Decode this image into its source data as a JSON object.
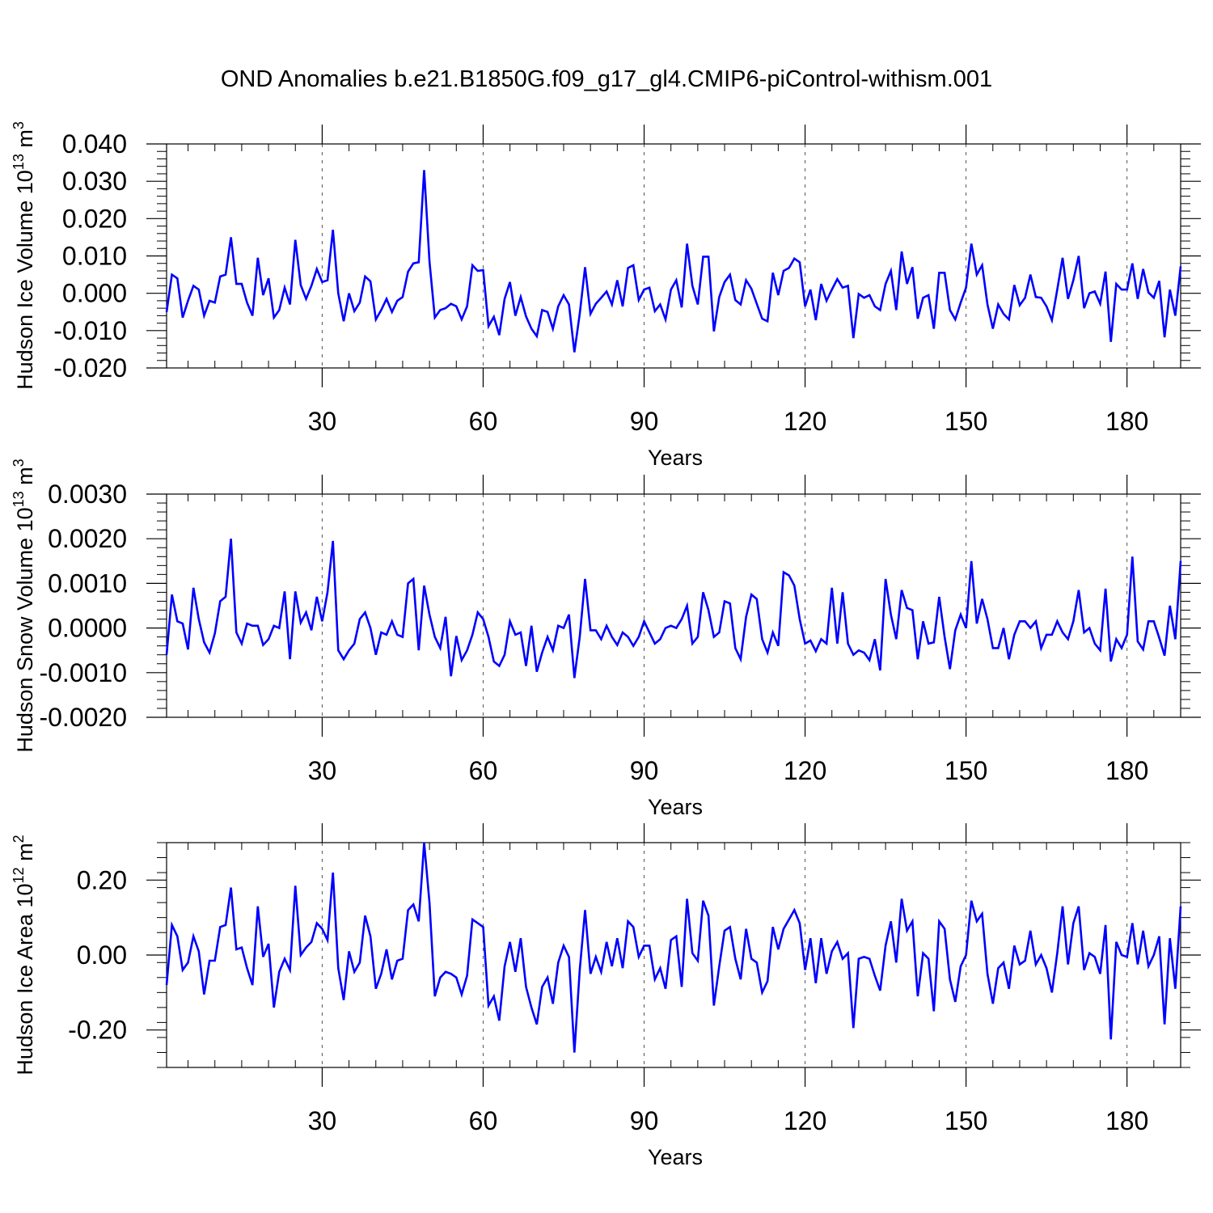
{
  "title": "OND Anomalies b.e21.B1850G.f09_g17_gl4.CMIP6-piControl-withism.001",
  "line_color": "#0000ff",
  "chart_data": [
    {
      "type": "line",
      "ylabel": "Hudson Ice Volume 10",
      "ylabel_exp": "13",
      "ylabel_unit": " m",
      "ylabel_unit_exp": "3",
      "xlabel": "Years",
      "xlim": [
        1,
        190
      ],
      "ylim": [
        -0.02,
        0.04
      ],
      "xticks": [
        30,
        60,
        90,
        120,
        150,
        180
      ],
      "xtick_labels": [
        "30",
        "60",
        "90",
        "120",
        "150",
        "180"
      ],
      "yticks": [
        -0.02,
        -0.01,
        0.0,
        0.01,
        0.02,
        0.03,
        0.04
      ],
      "ytick_labels": [
        "-0.020",
        "-0.010",
        "0.000",
        "0.010",
        "0.020",
        "0.030",
        "0.040"
      ],
      "series": [
        {
          "name": "Hudson Ice Volume",
          "values": [
            -0.005,
            0.005,
            0.004,
            -0.0065,
            -0.002,
            0.002,
            0.001,
            -0.006,
            -0.002,
            -0.0025,
            0.0045,
            0.005,
            0.015,
            0.0025,
            0.0025,
            -0.0025,
            -0.006,
            0.0095,
            -0.0005,
            0.004,
            -0.0065,
            -0.0045,
            0.0015,
            -0.003,
            0.0143,
            0.0022,
            -0.0015,
            0.002,
            0.0065,
            0.003,
            0.0035,
            0.017,
            0.0,
            -0.0075,
            0.0,
            -0.0048,
            -0.0025,
            0.0045,
            0.0032,
            -0.007,
            -0.0045,
            -0.0015,
            -0.005,
            -0.002,
            -0.001,
            0.0058,
            0.008,
            0.0083,
            0.033,
            0.0085,
            -0.0065,
            -0.0045,
            -0.004,
            -0.0028,
            -0.0035,
            -0.007,
            -0.0035,
            0.0075,
            0.006,
            0.0062,
            -0.0088,
            -0.0063,
            -0.0112,
            -0.0015,
            0.003,
            -0.006,
            -0.001,
            -0.0062,
            -0.0095,
            -0.0115,
            -0.0045,
            -0.005,
            -0.0095,
            -0.0035,
            -0.0005,
            -0.003,
            -0.0158,
            -0.0055,
            0.007,
            -0.0055,
            -0.0028,
            -0.0012,
            0.0005,
            -0.003,
            0.0035,
            -0.0035,
            0.0068,
            0.0075,
            -0.0018,
            0.001,
            0.0015,
            -0.0048,
            -0.003,
            -0.007,
            0.001,
            0.0035,
            -0.0038,
            0.0133,
            0.002,
            -0.003,
            0.0098,
            0.0098,
            -0.0102,
            -0.001,
            0.003,
            0.005,
            -0.0018,
            -0.003,
            0.0035,
            0.0012,
            -0.0028,
            -0.0068,
            -0.0075,
            0.0055,
            -0.0005,
            0.006,
            0.0068,
            0.0093,
            0.0083,
            -0.0035,
            0.001,
            -0.0072,
            0.0025,
            -0.002,
            0.001,
            0.0038,
            0.0015,
            0.002,
            -0.012,
            -0.0002,
            -0.0012,
            -0.0005,
            -0.0035,
            -0.0045,
            0.0025,
            0.006,
            -0.0045,
            0.0112,
            0.0025,
            0.007,
            -0.0068,
            -0.0012,
            -0.0005,
            -0.0095,
            0.0055,
            0.0055,
            -0.0045,
            -0.007,
            -0.0025,
            0.0015,
            0.0133,
            0.005,
            0.0075,
            -0.003,
            -0.0095,
            -0.003,
            -0.0055,
            -0.007,
            0.0022,
            -0.0032,
            -0.0012,
            0.005,
            -0.001,
            -0.0012,
            -0.0035,
            -0.0072,
            0.001,
            0.0095,
            -0.0015,
            0.0035,
            0.01,
            -0.004,
            0.0,
            0.0005,
            -0.0028,
            0.0058,
            -0.013,
            0.0025,
            0.001,
            0.001,
            0.008,
            -0.0015,
            0.0065,
            0.0002,
            -0.0012,
            0.0033,
            -0.0118,
            0.001,
            -0.006,
            0.0072
          ]
        }
      ]
    },
    {
      "type": "line",
      "ylabel": "Hudson Snow Volume 10",
      "ylabel_exp": "13",
      "ylabel_unit": " m",
      "ylabel_unit_exp": "3",
      "xlabel": "Years",
      "xlim": [
        1,
        190
      ],
      "ylim": [
        -0.002,
        0.003
      ],
      "xticks": [
        30,
        60,
        90,
        120,
        150,
        180
      ],
      "xtick_labels": [
        "30",
        "60",
        "90",
        "120",
        "150",
        "180"
      ],
      "yticks": [
        -0.002,
        -0.001,
        0.0,
        0.001,
        0.002,
        0.003
      ],
      "ytick_labels": [
        "-0.0020",
        "-0.0010",
        "0.0000",
        "0.0010",
        "0.0020",
        "0.0030"
      ],
      "series": [
        {
          "name": "Hudson Snow Volume",
          "values": [
            -0.0006,
            0.00075,
            0.00015,
            0.0001,
            -0.00048,
            0.0009,
            0.0002,
            -0.00032,
            -0.00055,
            -0.00012,
            0.0006,
            0.0007,
            0.002,
            -0.0001,
            -0.00035,
            0.0001,
            5e-05,
            5e-05,
            -0.00038,
            -0.00025,
            5e-05,
            0.0,
            0.00082,
            -0.0007,
            0.00082,
            0.00012,
            0.00035,
            -5e-05,
            0.0007,
            0.00015,
            0.0008,
            0.00195,
            -0.0005,
            -0.0007,
            -0.0005,
            -0.00035,
            0.0002,
            0.00035,
            0.0,
            -0.0006,
            -0.0001,
            -0.00015,
            0.00015,
            -0.00015,
            -0.0002,
            0.001,
            0.0011,
            -0.0005,
            0.00095,
            0.0003,
            -0.0002,
            -0.00045,
            0.00025,
            -0.00108,
            -0.00018,
            -0.00072,
            -0.0005,
            -0.00015,
            0.00035,
            0.0002,
            -0.0002,
            -0.00075,
            -0.00085,
            -0.0006,
            0.00015,
            -0.00015,
            -0.0001,
            -0.00085,
            5e-05,
            -0.00098,
            -0.00055,
            -0.0002,
            -0.0005,
            5e-05,
            0.0,
            0.0003,
            -0.00112,
            -0.0002,
            0.0011,
            -5e-05,
            -5e-05,
            -0.00025,
            5e-05,
            -0.0002,
            -0.00038,
            -0.0001,
            -0.0002,
            -0.0004,
            -0.0002,
            0.00015,
            -0.0001,
            -0.00035,
            -0.00025,
            0.0,
            5e-05,
            0.0,
            0.0002,
            0.0005,
            -0.00035,
            -0.0002,
            0.0008,
            0.0004,
            -0.0002,
            -0.0001,
            0.0006,
            0.00055,
            -0.00045,
            -0.0007,
            0.00025,
            0.00075,
            0.00065,
            -0.00025,
            -0.00055,
            -0.0001,
            -0.0004,
            0.00125,
            0.00118,
            0.00095,
            0.0002,
            -0.00035,
            -0.00028,
            -0.00052,
            -0.00025,
            -0.00035,
            0.0009,
            -0.00035,
            0.0008,
            -0.00035,
            -0.0006,
            -0.0005,
            -0.00055,
            -0.00072,
            -0.00025,
            -0.00095,
            0.0011,
            0.0003,
            -0.00025,
            0.00085,
            0.00045,
            0.0004,
            -0.0007,
            0.00015,
            -0.00035,
            -0.00032,
            0.0007,
            -0.0002,
            -0.00092,
            -5e-05,
            0.0003,
            0.0,
            0.0015,
            0.0001,
            0.00065,
            0.0002,
            -0.00045,
            -0.00045,
            0.0,
            -0.0007,
            -0.00015,
            0.00015,
            0.00015,
            0.0,
            0.00015,
            -0.00045,
            -0.00015,
            -0.00015,
            0.00015,
            -0.0001,
            -0.00025,
            0.00015,
            0.00085,
            -0.0001,
            0.0,
            -0.00035,
            -0.0005,
            0.00088,
            -0.00075,
            -0.00025,
            -0.00045,
            -0.00015,
            0.0016,
            -0.0003,
            -0.00048,
            0.00015,
            0.00015,
            -0.00022,
            -0.00062,
            0.0005,
            -0.00025,
            0.0015
          ]
        }
      ]
    },
    {
      "type": "line",
      "ylabel": "Hudson Ice Area 10",
      "ylabel_exp": "12",
      "ylabel_unit": " m",
      "ylabel_unit_exp": "2",
      "xlabel": "Years",
      "xlim": [
        1,
        190
      ],
      "ylim": [
        -0.3,
        0.3
      ],
      "xticks": [
        30,
        60,
        90,
        120,
        150,
        180
      ],
      "xtick_labels": [
        "30",
        "60",
        "90",
        "120",
        "150",
        "180"
      ],
      "yticks": [
        -0.2,
        0.0,
        0.2
      ],
      "ytick_labels": [
        "-0.20",
        "0.00",
        "0.20"
      ],
      "series": [
        {
          "name": "Hudson Ice Area",
          "values": [
            -0.08,
            0.08,
            0.05,
            -0.04,
            -0.02,
            0.05,
            0.01,
            -0.105,
            -0.015,
            -0.015,
            0.075,
            0.08,
            0.18,
            0.015,
            0.02,
            -0.035,
            -0.08,
            0.13,
            -0.005,
            0.03,
            -0.14,
            -0.045,
            -0.01,
            -0.04,
            0.185,
            0.0,
            0.02,
            0.035,
            0.085,
            0.07,
            0.04,
            0.22,
            -0.035,
            -0.12,
            0.01,
            -0.045,
            -0.02,
            0.105,
            0.05,
            -0.09,
            -0.05,
            0.015,
            -0.065,
            -0.015,
            -0.01,
            0.12,
            0.135,
            0.09,
            0.3,
            0.14,
            -0.11,
            -0.06,
            -0.045,
            -0.05,
            -0.06,
            -0.105,
            -0.055,
            0.095,
            0.085,
            0.075,
            -0.135,
            -0.11,
            -0.175,
            -0.03,
            0.035,
            -0.045,
            0.045,
            -0.085,
            -0.14,
            -0.185,
            -0.085,
            -0.06,
            -0.13,
            -0.02,
            0.025,
            -0.005,
            -0.26,
            -0.04,
            0.12,
            -0.05,
            -0.005,
            -0.045,
            0.035,
            -0.03,
            0.045,
            -0.035,
            0.09,
            0.075,
            -0.005,
            0.025,
            0.025,
            -0.065,
            -0.035,
            -0.09,
            0.04,
            0.05,
            -0.085,
            0.15,
            0.005,
            -0.015,
            0.145,
            0.105,
            -0.135,
            -0.03,
            0.065,
            0.075,
            -0.01,
            -0.065,
            0.07,
            -0.01,
            -0.02,
            -0.1,
            -0.07,
            0.075,
            0.015,
            0.07,
            0.095,
            0.12,
            0.085,
            -0.04,
            0.045,
            -0.075,
            0.045,
            -0.05,
            0.01,
            0.035,
            -0.01,
            0.005,
            -0.195,
            -0.01,
            -0.005,
            -0.01,
            -0.055,
            -0.095,
            0.025,
            0.09,
            -0.02,
            0.15,
            0.065,
            0.09,
            -0.11,
            0.005,
            -0.01,
            -0.15,
            0.09,
            0.07,
            -0.065,
            -0.125,
            -0.03,
            0.0,
            0.145,
            0.09,
            0.11,
            -0.05,
            -0.13,
            -0.035,
            -0.02,
            -0.09,
            0.025,
            -0.025,
            -0.015,
            0.065,
            -0.025,
            0.0,
            -0.035,
            -0.1,
            0.005,
            0.13,
            -0.025,
            0.085,
            0.13,
            -0.04,
            0.005,
            -0.005,
            -0.05,
            0.08,
            -0.225,
            0.035,
            0.0,
            -0.005,
            0.085,
            -0.025,
            0.065,
            -0.03,
            0.0,
            0.05,
            -0.185,
            0.045,
            -0.09,
            0.13
          ]
        }
      ]
    }
  ]
}
